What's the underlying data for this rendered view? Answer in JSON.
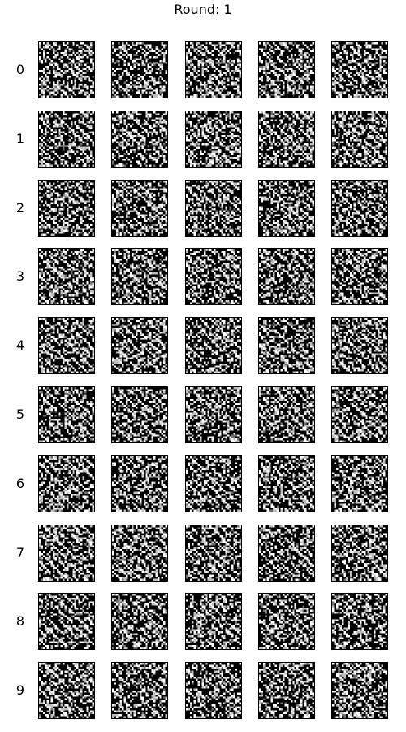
{
  "figure": {
    "title": "Round: 1",
    "row_labels": [
      "0",
      "1",
      "2",
      "3",
      "4",
      "5",
      "6",
      "7",
      "8",
      "9"
    ],
    "columns_per_row": 5,
    "panel_style": "grayscale noise image"
  },
  "colors": {
    "background": "#ffffff",
    "panel_background": "#000000",
    "pixel_bright": "#ffffff",
    "pixel_mid": "#bfbfbf",
    "pixel_dim": "#6f6f6f"
  }
}
